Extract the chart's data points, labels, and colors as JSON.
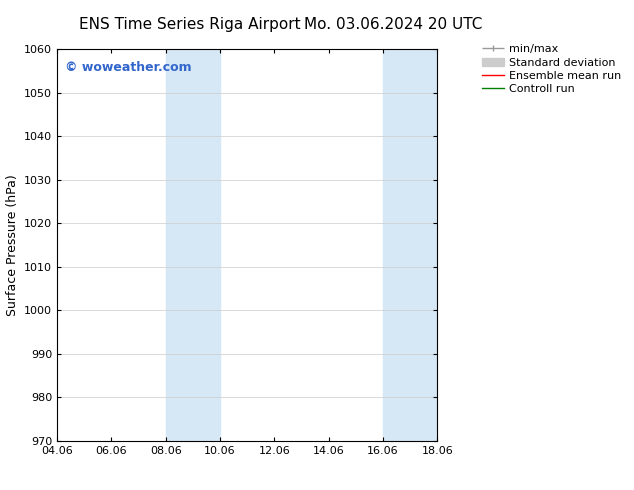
{
  "title_left": "ENS Time Series Riga Airport",
  "title_right": "Mo. 03.06.2024 20 UTC",
  "xlabel_ticks": [
    "04.06",
    "06.06",
    "08.06",
    "10.06",
    "12.06",
    "14.06",
    "16.06",
    "18.06"
  ],
  "ylabel": "Surface Pressure (hPa)",
  "ylim": [
    970,
    1060
  ],
  "yticks": [
    970,
    980,
    990,
    1000,
    1010,
    1020,
    1030,
    1040,
    1050,
    1060
  ],
  "xlim": [
    0,
    14
  ],
  "xtick_positions": [
    0,
    2,
    4,
    6,
    8,
    10,
    12,
    14
  ],
  "shaded_bands": [
    {
      "x_start": 4.0,
      "x_end": 6.0
    },
    {
      "x_start": 12.0,
      "x_end": 14.0
    }
  ],
  "shaded_color": "#d6e8f5",
  "watermark_text": "© woweather.com",
  "watermark_color": "#3366cc",
  "legend_items": [
    {
      "label": "min/max",
      "color": "#999999",
      "linestyle": "-",
      "linewidth": 1.0
    },
    {
      "label": "Standard deviation",
      "color": "#cccccc",
      "linestyle": "-",
      "linewidth": 6
    },
    {
      "label": "Ensemble mean run",
      "color": "#ff0000",
      "linestyle": "-",
      "linewidth": 1.0
    },
    {
      "label": "Controll run",
      "color": "#008000",
      "linestyle": "-",
      "linewidth": 1.0
    }
  ],
  "bg_color": "#ffffff",
  "grid_color": "#cccccc",
  "title_fontsize": 11,
  "tick_fontsize": 8,
  "ylabel_fontsize": 9,
  "watermark_fontsize": 9,
  "legend_fontsize": 8
}
